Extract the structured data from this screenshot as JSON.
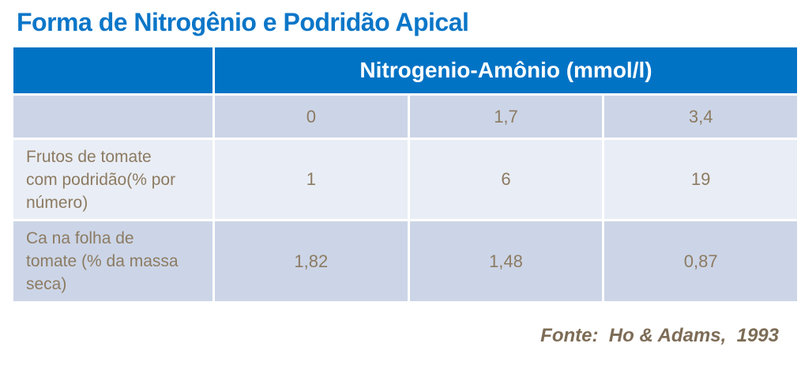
{
  "title": "Forma de Nitrogênio e Podridão Apical",
  "table": {
    "header": "Nitrogenio-Amônio (mmol/l)",
    "subheader_values": [
      "0",
      "1,7",
      "3,4"
    ],
    "rows": [
      {
        "label": "Frutos de tomate com podridão(% por número)",
        "values": [
          "1",
          "6",
          "19"
        ]
      },
      {
        "label": "Ca na folha de tomate (% da massa seca)",
        "values": [
          "1,82",
          "1,48",
          "0,87"
        ]
      }
    ]
  },
  "source": "Fonte:  Ho & Adams,  1993",
  "colors": {
    "title_blue": "#0b76c8",
    "header_blue": "#0173c5",
    "band_dark": "#ccd5e7",
    "band_light": "#e9edf5",
    "cell_text_brown": "#8c7b62",
    "source_brown": "#7d6c56",
    "separator": "#ffffff",
    "background": "#ffffff"
  },
  "chart_data": {
    "type": "table",
    "title": "Forma de Nitrogênio e Podridão Apical",
    "column_group_label": "Nitrogenio-Amônio (mmol/l)",
    "columns": [
      0,
      1.7,
      3.4
    ],
    "series": [
      {
        "name": "Frutos de tomate com podridão(% por número)",
        "values": [
          1,
          6,
          19
        ]
      },
      {
        "name": "Ca na folha de tomate (% da massa seca)",
        "values": [
          1.82,
          1.48,
          0.87
        ]
      }
    ],
    "source": "Fonte: Ho & Adams, 1993"
  }
}
